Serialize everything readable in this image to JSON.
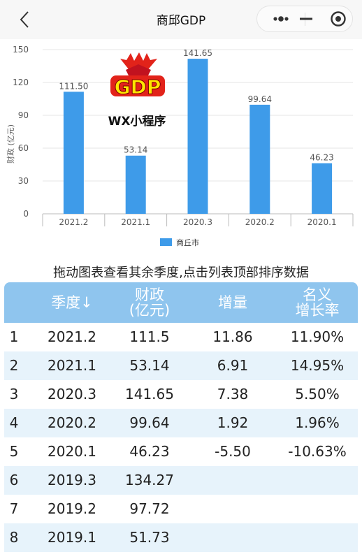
{
  "nav": {
    "title": "商邱GDP",
    "back_icon": "chevron-left-icon",
    "more_icon": "more-dots-icon",
    "minimize_icon": "minimize-icon",
    "close_icon": "target-circle-icon"
  },
  "watermark": {
    "logo_text": "GDP",
    "caption": "WX小程序"
  },
  "chart_data": {
    "type": "bar",
    "categories": [
      "2021.2",
      "2021.1",
      "2020.3",
      "2020.2",
      "2020.1"
    ],
    "series": [
      {
        "name": "商丘市",
        "values": [
          111.5,
          53.14,
          141.65,
          99.64,
          46.23
        ],
        "labels": [
          "111.50",
          "53.14",
          "141.65",
          "99.64",
          "46.23"
        ]
      }
    ],
    "ylabel": "财政 (亿元)",
    "ylim": [
      0,
      150
    ],
    "yticks": [
      0,
      30,
      60,
      90,
      120,
      150
    ],
    "grid": true,
    "legend": "bottom",
    "color": "#3e9be9"
  },
  "hint": "拖动图表查看其余季度,点击列表顶部排序数据",
  "table": {
    "headers": [
      {
        "label": "",
        "lines": []
      },
      {
        "label": "季度↓",
        "lines": [
          "季度↓"
        ]
      },
      {
        "label": "财政(亿元)",
        "lines": [
          "财政",
          "(亿元)"
        ]
      },
      {
        "label": "增量",
        "lines": [
          "增量"
        ]
      },
      {
        "label": "名义增长率",
        "lines": [
          "名义",
          "增长率"
        ]
      }
    ],
    "rows": [
      [
        "1",
        "2021.2",
        "111.5",
        "11.86",
        "11.90%"
      ],
      [
        "2",
        "2021.1",
        "53.14",
        "6.91",
        "14.95%"
      ],
      [
        "3",
        "2020.3",
        "141.65",
        "7.38",
        "5.50%"
      ],
      [
        "4",
        "2020.2",
        "99.64",
        "1.92",
        "1.96%"
      ],
      [
        "5",
        "2020.1",
        "46.23",
        "-5.50",
        "-10.63%"
      ],
      [
        "6",
        "2019.3",
        "134.27",
        "",
        ""
      ],
      [
        "7",
        "2019.2",
        "97.72",
        "",
        ""
      ],
      [
        "8",
        "2019.1",
        "51.73",
        "",
        ""
      ]
    ]
  }
}
